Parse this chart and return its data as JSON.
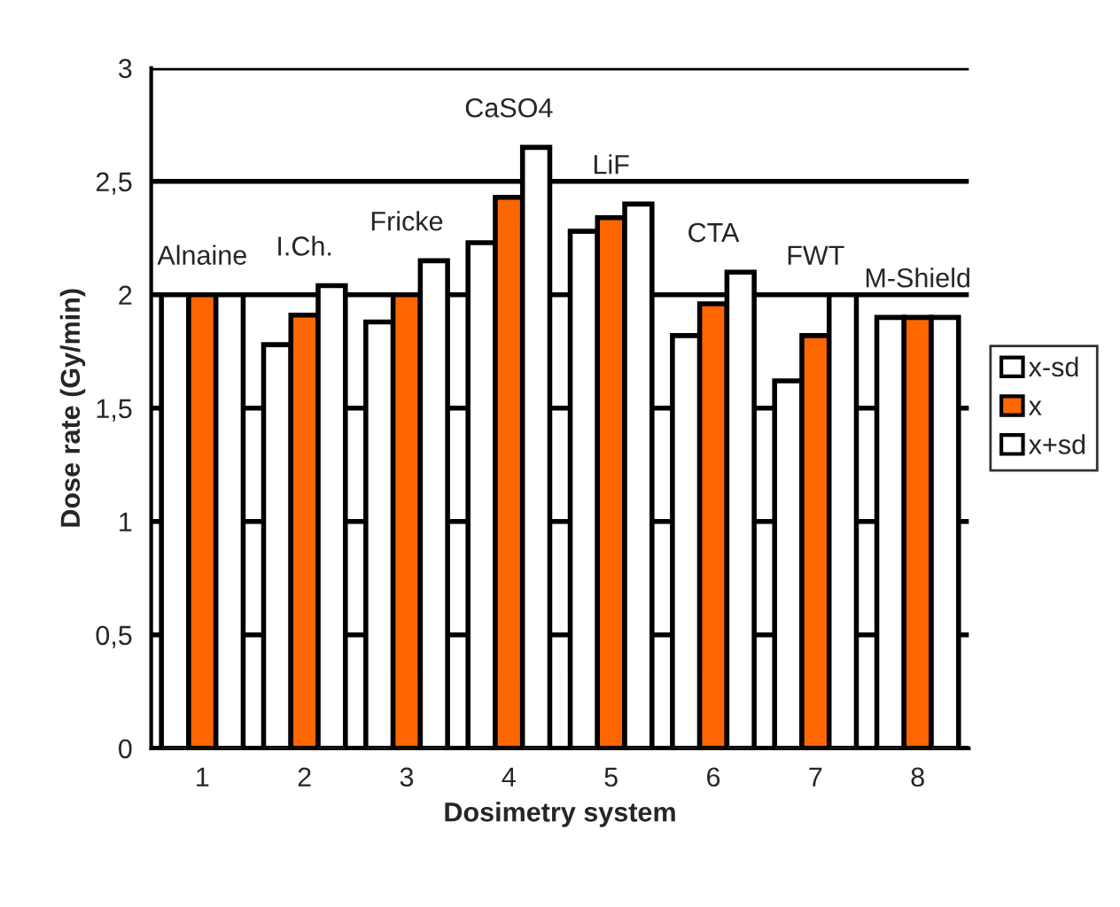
{
  "chart_data": {
    "type": "bar",
    "xlabel": "Dosimetry system",
    "ylabel": "Dose rate (Gy/min)",
    "categories": [
      "1",
      "2",
      "3",
      "4",
      "5",
      "6",
      "7",
      "8"
    ],
    "series": [
      {
        "name": "x-sd",
        "color": "#ffffff",
        "values": [
          2.0,
          1.78,
          1.88,
          2.23,
          2.28,
          1.82,
          1.62,
          1.9
        ]
      },
      {
        "name": "x",
        "color": "#ff6600",
        "values": [
          2.0,
          1.91,
          2.0,
          2.43,
          2.34,
          1.96,
          1.82,
          1.9
        ]
      },
      {
        "name": "x+sd",
        "color": "#ffffff",
        "values": [
          2.0,
          2.04,
          2.15,
          2.65,
          2.4,
          2.1,
          2.0,
          1.9
        ]
      }
    ],
    "ylim": [
      0,
      3
    ],
    "yticks": [
      0,
      {
        "value": 0.5,
        "label": "0,5"
      },
      1,
      {
        "value": 1.5,
        "label": "1,5"
      },
      2,
      {
        "value": 2.5,
        "label": "2,5"
      },
      3
    ],
    "grid": "y",
    "legend": "right",
    "annotations": [
      "Alnaine",
      "I.Ch.",
      "Fricke",
      "CaSO4",
      "LiF",
      "CTA",
      "FWT",
      "M-Shield"
    ]
  }
}
